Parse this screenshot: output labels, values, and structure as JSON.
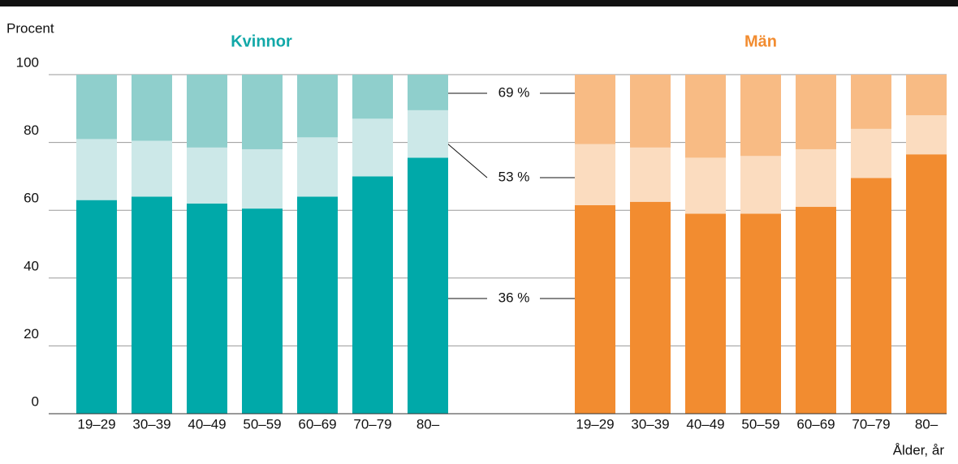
{
  "chart_data": {
    "type": "bar",
    "stacked": true,
    "ylabel": "Procent",
    "xlabel": "Ålder, år",
    "ylim": [
      0,
      100
    ],
    "yticks": [
      0,
      20,
      40,
      60,
      80,
      100
    ],
    "grid": true,
    "panels": [
      {
        "title": "Kvinnor",
        "color": "#11a8a8",
        "categories": [
          "19–29",
          "30–39",
          "40–49",
          "50–59",
          "60–69",
          "70–79",
          "80–"
        ],
        "series": [
          {
            "color": "#00a9a9",
            "values": [
              63,
              64,
              62,
              60.5,
              64,
              70,
              75.5
            ]
          },
          {
            "color": "#cce8e8",
            "values": [
              18,
              16.5,
              16.5,
              17.5,
              17.5,
              17,
              14
            ]
          },
          {
            "color": "#8fcfcc",
            "values": [
              19,
              19.5,
              21.5,
              22,
              18.5,
              13,
              10.5
            ]
          }
        ]
      },
      {
        "title": "Män",
        "color": "#f28c30",
        "categories": [
          "19–29",
          "30–39",
          "40–49",
          "50–59",
          "60–69",
          "70–79",
          "80–"
        ],
        "series": [
          {
            "color": "#f28c30",
            "values": [
              61.5,
              62.5,
              59,
              59,
              61,
              69.5,
              76.5
            ]
          },
          {
            "color": "#fbdcbf",
            "values": [
              18,
              16,
              16.5,
              17,
              17,
              14.5,
              11.5
            ]
          },
          {
            "color": "#f8bb84",
            "values": [
              20.5,
              21.5,
              24.5,
              24,
              22,
              16,
              12
            ]
          }
        ]
      }
    ],
    "annotations": [
      "69 %",
      "53 %",
      "36 %"
    ]
  }
}
